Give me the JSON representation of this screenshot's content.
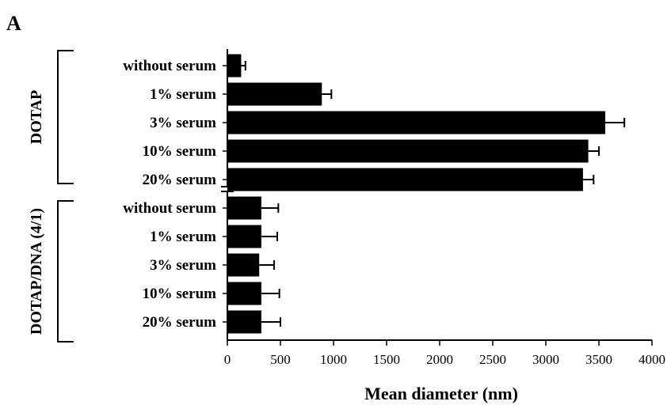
{
  "panel_label": "A",
  "chart_data": {
    "type": "bar",
    "orientation": "horizontal",
    "xlabel": "Mean   diameter   (nm)",
    "ylabel": "",
    "xlim": [
      0,
      4000
    ],
    "xticks": [
      0,
      500,
      1000,
      1500,
      2000,
      2500,
      3000,
      3500,
      4000
    ],
    "groups": [
      {
        "label": "DOTAP",
        "categories": [
          "without  serum",
          "1% serum",
          "3% serum",
          "10% serum",
          "20% serum"
        ],
        "values": [
          130,
          890,
          3560,
          3400,
          3350
        ],
        "errors": [
          40,
          90,
          180,
          100,
          100
        ]
      },
      {
        "label": "DOTAP/DNA   (4/1)",
        "categories": [
          "without  serum",
          "1% serum",
          "3% serum",
          "10% serum",
          "20% serum"
        ],
        "values": [
          320,
          320,
          300,
          320,
          320
        ],
        "errors": [
          160,
          150,
          140,
          170,
          180
        ]
      }
    ],
    "grid": false,
    "legend": "none",
    "bar_color": "#000000"
  }
}
